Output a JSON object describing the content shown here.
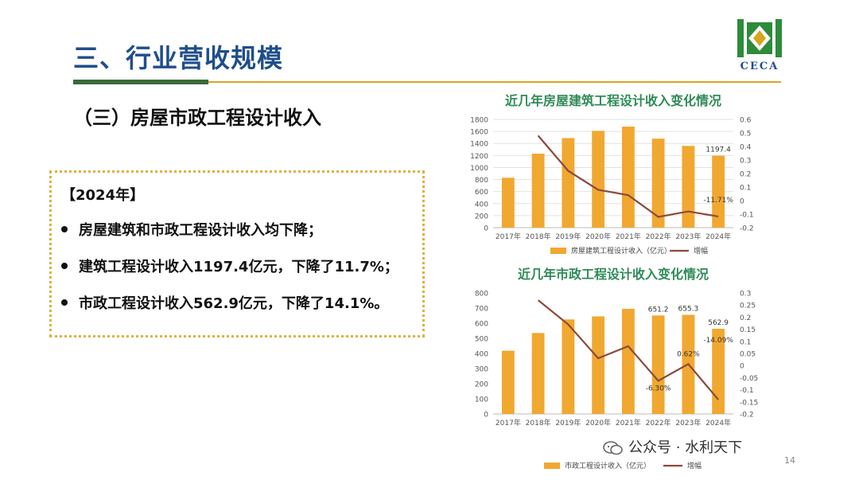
{
  "slide": {
    "title": "三、行业营收规模",
    "subtitle": "（三）房屋市政工程设计收入",
    "logo_text": "CECA",
    "page_number": "14",
    "watermark": "公众号 · 水利天下"
  },
  "summary": {
    "year_heading": "【2024年】",
    "bullets": [
      "房屋建筑和市政工程设计收入均下降；",
      "建筑工程设计收入1197.4亿元，下降了11.7%；",
      "市政工程设计收入562.9亿元，下降了14.1%。"
    ]
  },
  "colors": {
    "bar": "#f0a830",
    "line": "#8b4a3c",
    "title_blue": "#1f4e8c",
    "chart_title_green": "#2e8b57",
    "accent_green": "#3a6b3a",
    "accent_gold": "#d9a520"
  },
  "chart_data": [
    {
      "type": "bar",
      "title": "近几年房屋建筑工程设计收入变化情况",
      "categories": [
        "2017年",
        "2018年",
        "2019年",
        "2020年",
        "2021年",
        "2022年",
        "2023年",
        "2024年"
      ],
      "series": [
        {
          "name": "房屋建筑工程设计收入",
          "unit_note": "（亿元）",
          "type": "bar",
          "axis": "left",
          "values": [
            830,
            1230,
            1490,
            1610,
            1680,
            1480,
            1360,
            1197.4
          ]
        },
        {
          "name": "增幅",
          "type": "line",
          "axis": "right",
          "values": [
            null,
            0.48,
            0.22,
            0.08,
            0.04,
            -0.12,
            -0.08,
            -0.1171
          ]
        }
      ],
      "data_labels": [
        {
          "series": 0,
          "index": 7,
          "text": "1197.4"
        },
        {
          "series": 1,
          "index": 7,
          "text": "-11.71%"
        }
      ],
      "ylim_left": [
        0,
        1800
      ],
      "ylim_right": [
        -0.2,
        0.6
      ],
      "yticks_left": [
        "0",
        "200",
        "400",
        "600",
        "800",
        "1000",
        "1200",
        "1400",
        "1600",
        "1800"
      ],
      "yticks_right": [
        "-0.2",
        "-0.1",
        "0",
        "0.1",
        "0.2",
        "0.3",
        "0.4",
        "0.5",
        "0.6"
      ],
      "legend": "bottom",
      "grid": true
    },
    {
      "type": "bar",
      "title": "近几年市政工程设计收入变化情况",
      "categories": [
        "2017年",
        "2018年",
        "2019年",
        "2020年",
        "2021年",
        "2022年",
        "2023年",
        "2024年"
      ],
      "series": [
        {
          "name": "市政工程设计收入",
          "unit_note": "（亿元）",
          "type": "bar",
          "axis": "left",
          "values": [
            418,
            535,
            625,
            645,
            695,
            651.2,
            655.3,
            562.9
          ]
        },
        {
          "name": "增幅",
          "type": "line",
          "axis": "right",
          "values": [
            null,
            0.27,
            0.17,
            0.03,
            0.08,
            -0.063,
            0.0062,
            -0.1409
          ]
        }
      ],
      "data_labels": [
        {
          "series": 0,
          "index": 5,
          "text": "651.2"
        },
        {
          "series": 0,
          "index": 6,
          "text": "655.3"
        },
        {
          "series": 0,
          "index": 7,
          "text": "562.9"
        },
        {
          "series": 1,
          "index": 5,
          "text": "-6.30%"
        },
        {
          "series": 1,
          "index": 6,
          "text": "0.62%"
        },
        {
          "series": 1,
          "index": 7,
          "text": "-14.09%"
        }
      ],
      "ylim_left": [
        0,
        800
      ],
      "ylim_right": [
        -0.2,
        0.3
      ],
      "yticks_left": [
        "0",
        "100",
        "200",
        "300",
        "400",
        "500",
        "600",
        "700",
        "800"
      ],
      "yticks_right": [
        "-0.2",
        "-0.15",
        "-0.1",
        "-0.05",
        "0",
        "0.05",
        "0.1",
        "0.15",
        "0.2",
        "0.25",
        "0.3"
      ],
      "legend": "bottom",
      "grid": false
    }
  ]
}
